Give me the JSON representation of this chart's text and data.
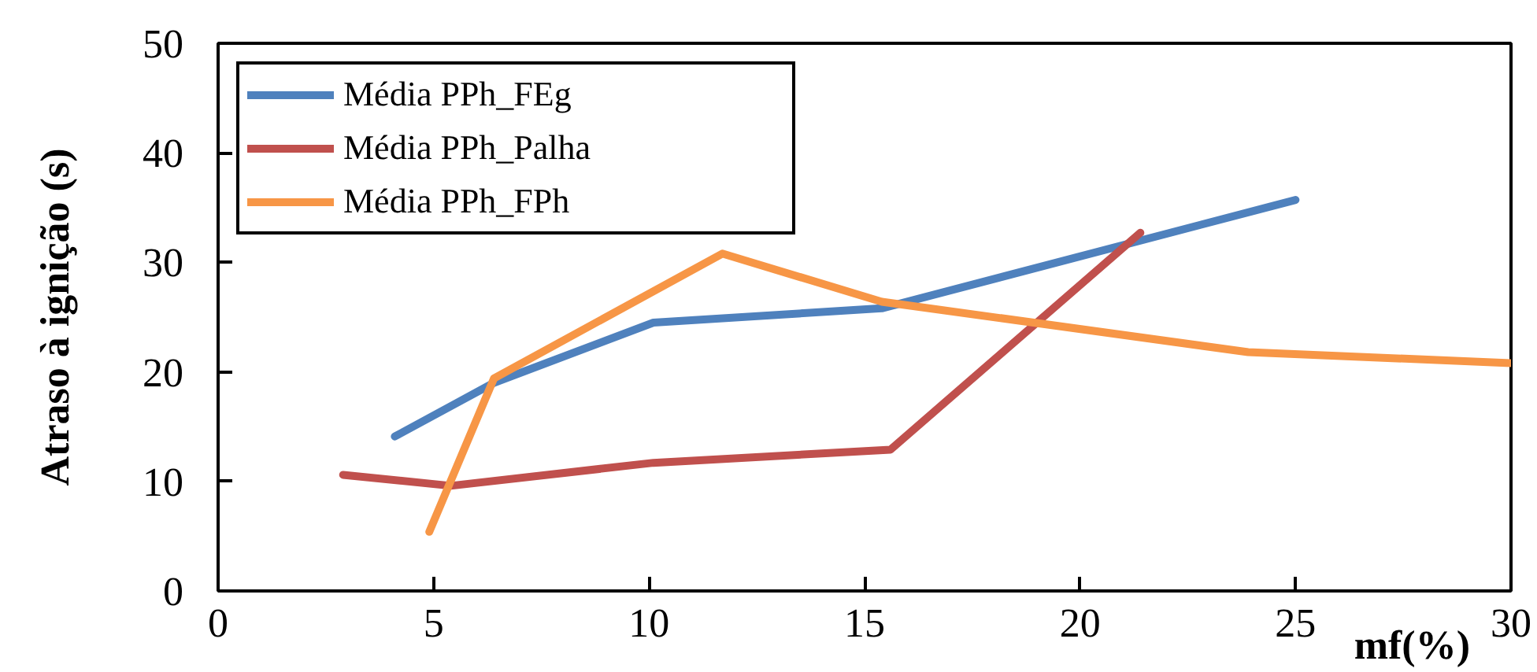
{
  "chart_data": {
    "type": "line",
    "xlabel": "mf(%)",
    "ylabel": "Atraso à ignição (s)",
    "xlim": [
      0,
      30
    ],
    "xticks": [
      0,
      5,
      10,
      15,
      20,
      25,
      30
    ],
    "ylim": [
      0,
      50
    ],
    "yticks": [
      0,
      10,
      20,
      30,
      40,
      50
    ],
    "grid": false,
    "legend": "top left",
    "line_style": "solid",
    "series": [
      {
        "name": "Média PPh_FEg",
        "color": "#4f81bd",
        "x": [
          4.1,
          6.4,
          10.1,
          15.4,
          25.0
        ],
        "values": [
          14.1,
          19.0,
          24.5,
          25.8,
          35.7
        ]
      },
      {
        "name": "Média PPh_Palha",
        "color": "#c0504d",
        "x": [
          2.9,
          5.4,
          10.1,
          15.6,
          21.4
        ],
        "values": [
          10.6,
          9.6,
          11.7,
          12.9,
          32.7
        ]
      },
      {
        "name": "Média PPh_FPh",
        "color": "#f79646",
        "x": [
          4.9,
          6.4,
          11.7,
          15.4,
          23.9,
          30.0
        ],
        "values": [
          5.4,
          19.4,
          30.8,
          26.4,
          21.8,
          20.8
        ]
      }
    ]
  }
}
